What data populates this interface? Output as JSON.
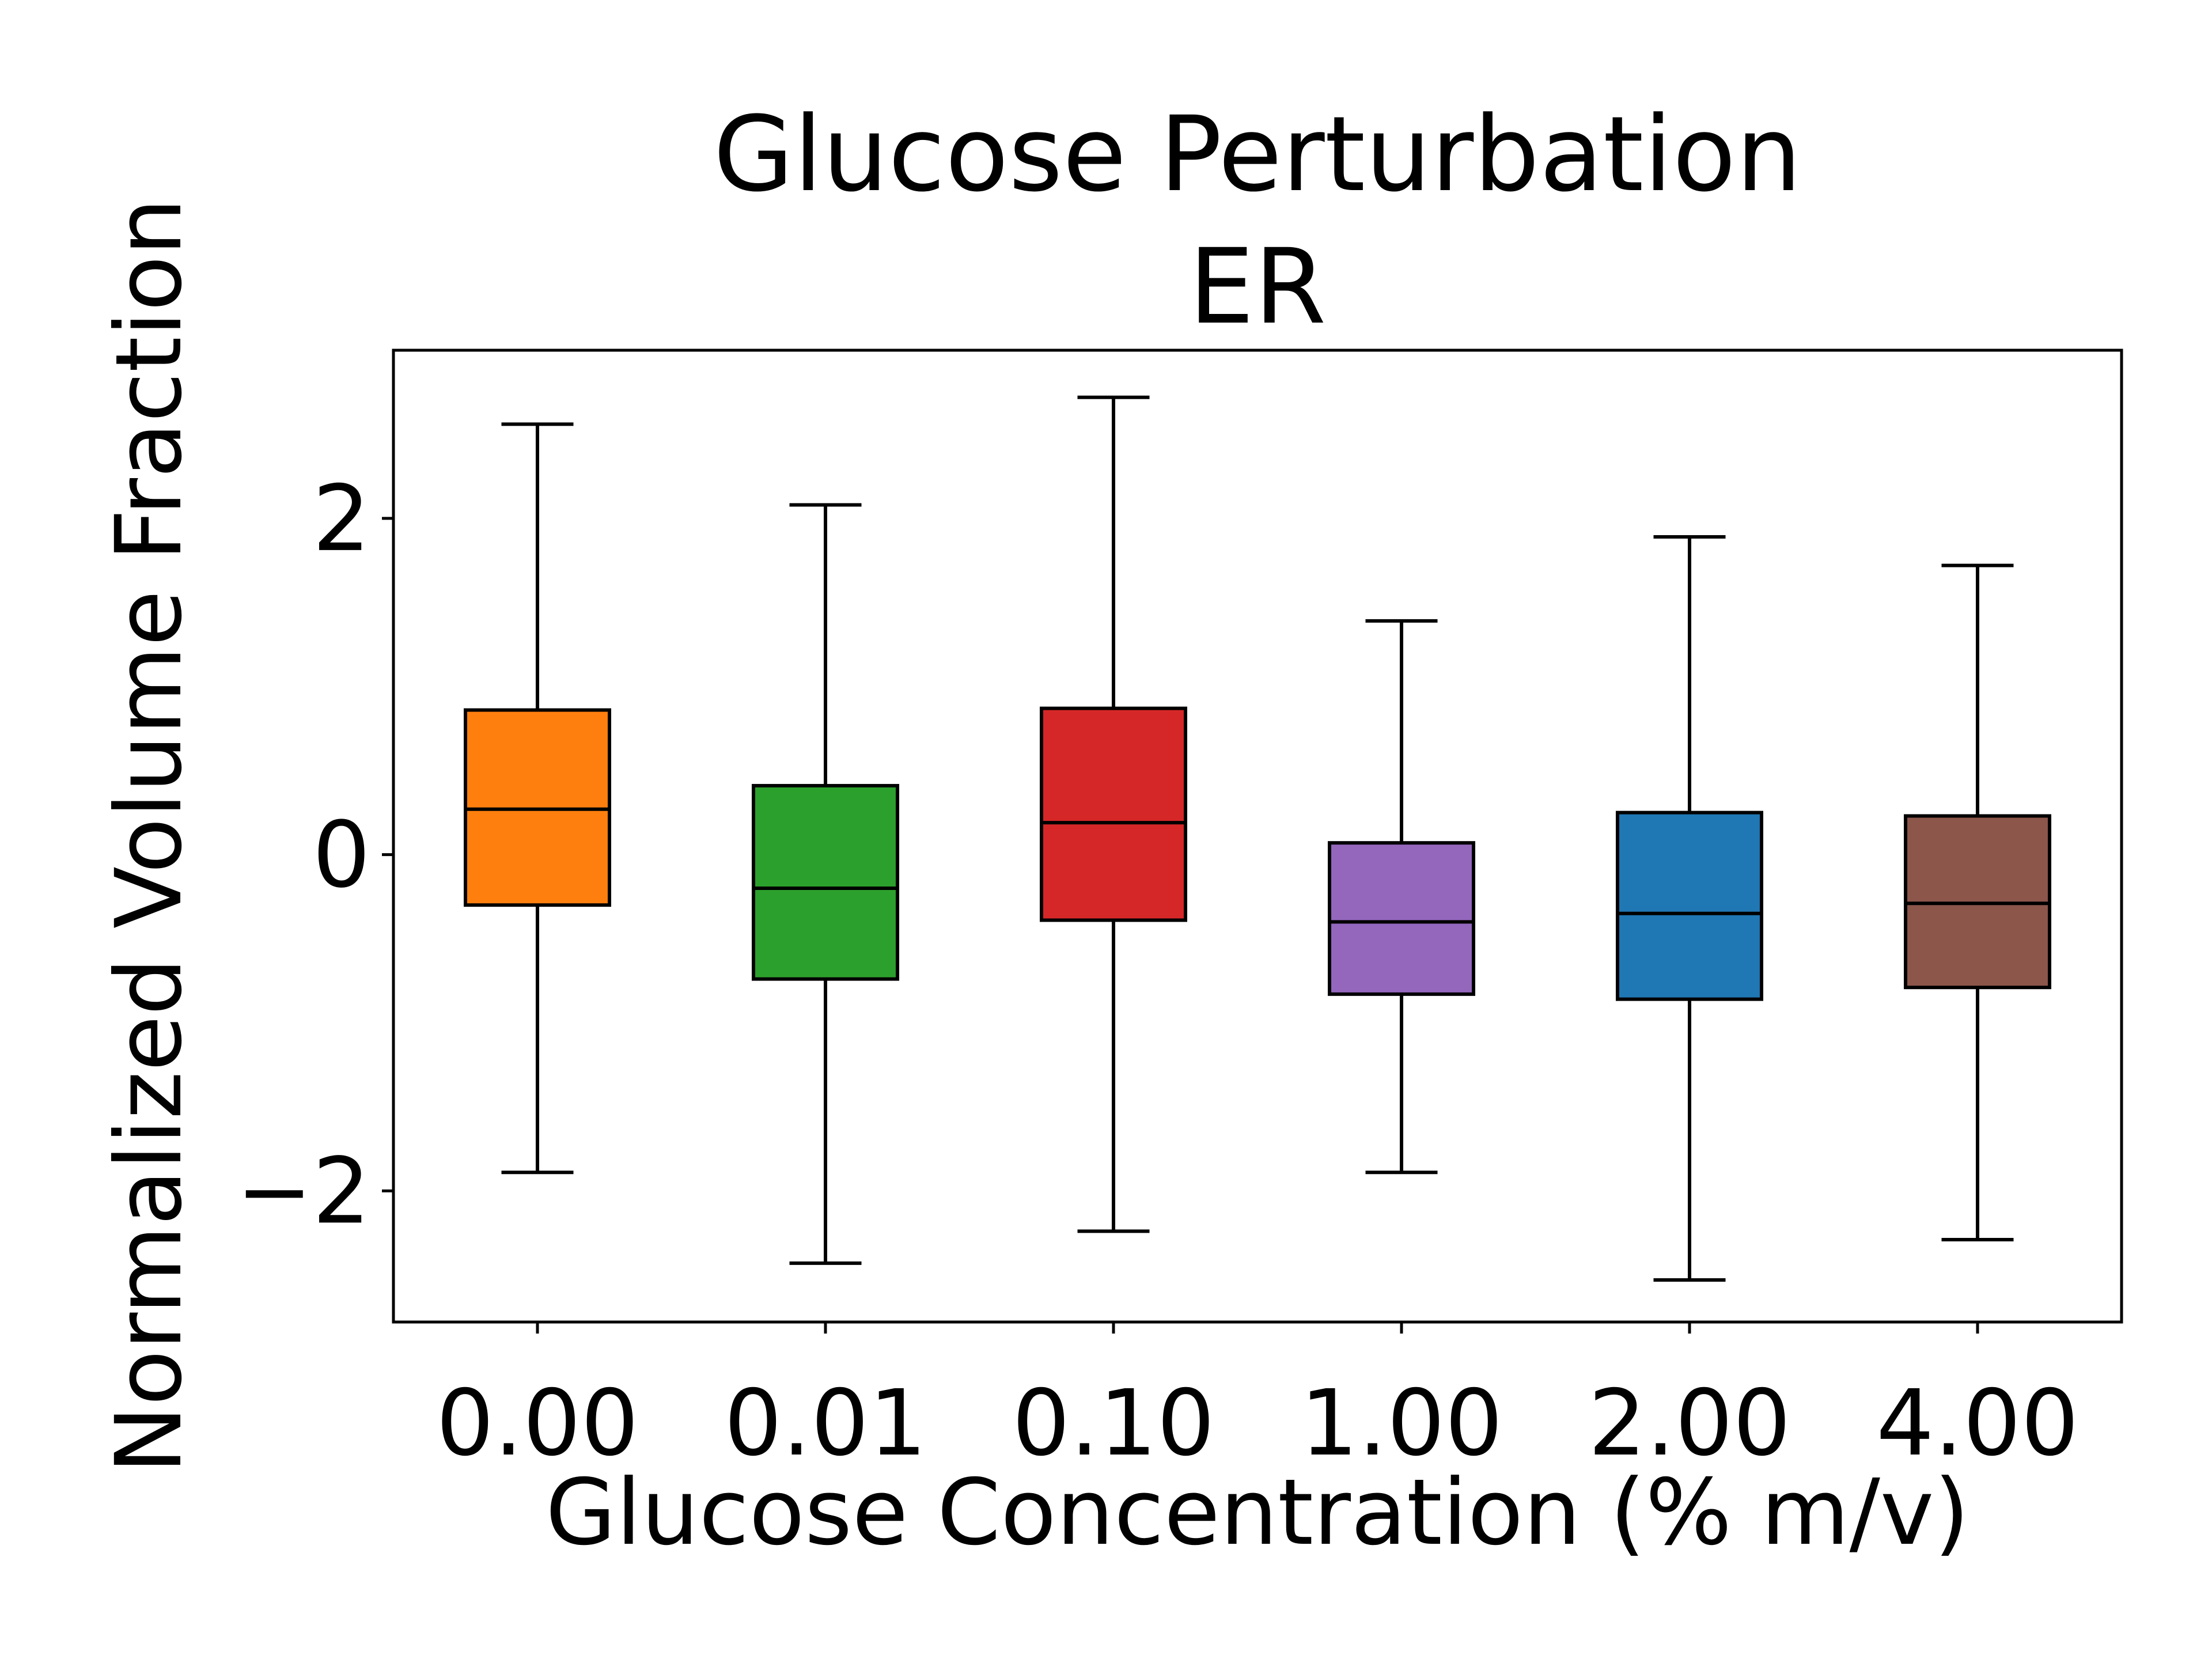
{
  "chart_data": {
    "type": "box",
    "title": "Glucose Perturbation",
    "subtitle": "ER",
    "xlabel": "Glucose Concentration (% m/v)",
    "ylabel": "Normalized Volume Fraction",
    "ylim": [
      -2.78,
      3.0
    ],
    "yticks": [
      -2,
      0,
      2
    ],
    "ytick_labels": [
      "−2",
      "0",
      "2"
    ],
    "grid": false,
    "categories": [
      "0.00",
      "0.01",
      "0.10",
      "1.00",
      "2.00",
      "4.00"
    ],
    "boxes": [
      {
        "category": "0.00",
        "whisker_low": -1.89,
        "q1": -0.3,
        "median": 0.27,
        "q3": 0.86,
        "whisker_high": 2.56,
        "color": "#ff7f0e"
      },
      {
        "category": "0.01",
        "whisker_low": -2.43,
        "q1": -0.74,
        "median": -0.2,
        "q3": 0.41,
        "whisker_high": 2.08,
        "color": "#2ca02c"
      },
      {
        "category": "0.10",
        "whisker_low": -2.24,
        "q1": -0.39,
        "median": 0.19,
        "q3": 0.87,
        "whisker_high": 2.72,
        "color": "#d62728"
      },
      {
        "category": "1.00",
        "whisker_low": -1.89,
        "q1": -0.83,
        "median": -0.4,
        "q3": 0.07,
        "whisker_high": 1.39,
        "color": "#9467bd"
      },
      {
        "category": "2.00",
        "whisker_low": -2.53,
        "q1": -0.86,
        "median": -0.35,
        "q3": 0.25,
        "whisker_high": 1.89,
        "color": "#1f77b4"
      },
      {
        "category": "4.00",
        "whisker_low": -2.29,
        "q1": -0.79,
        "median": -0.29,
        "q3": 0.23,
        "whisker_high": 1.72,
        "color": "#8c564b"
      }
    ]
  }
}
